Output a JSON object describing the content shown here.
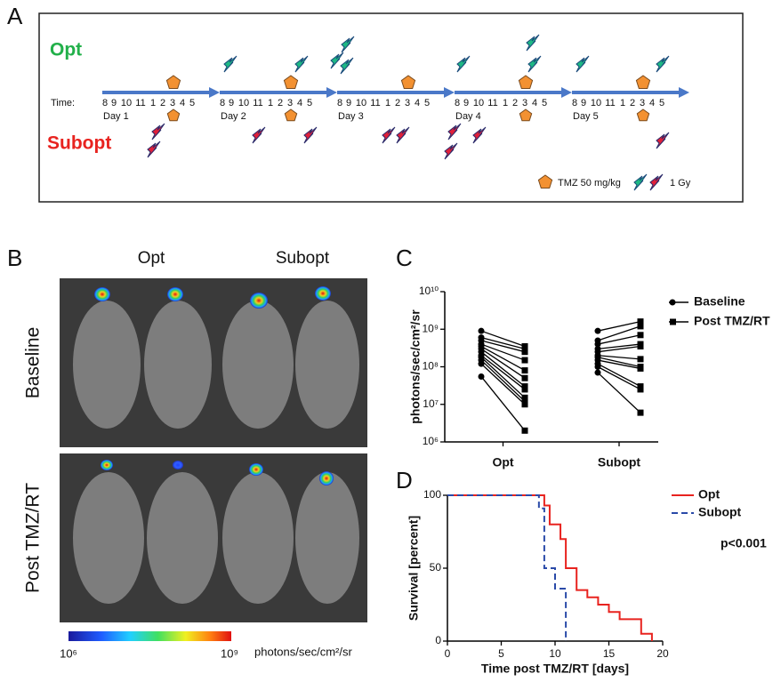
{
  "panel_a": {
    "label": "A",
    "groups": [
      "Opt",
      "Subopt"
    ],
    "time_label": "Time:",
    "hours": [
      "8",
      "9",
      "10",
      "11",
      "1",
      "2",
      "3",
      "4",
      "5"
    ],
    "days": [
      "Day 1",
      "Day 2",
      "Day 3",
      "Day 4",
      "Day 5"
    ],
    "legend": {
      "tmz": "TMZ 50 mg/kg",
      "radiation": "1 Gy"
    }
  },
  "panel_b": {
    "label": "B",
    "columns": [
      "Opt",
      "Subopt"
    ],
    "rows": [
      "Baseline",
      "Post TMZ/RT"
    ],
    "colorbar": {
      "min": "10⁶",
      "max": "10⁹",
      "unit": "photons/sec/cm²/sr"
    }
  },
  "chart_data": [
    {
      "label": "C",
      "type": "paired",
      "categories": [
        "Opt",
        "Subopt"
      ],
      "y_title": "photons/sec/cm²/sr",
      "log_scale": true,
      "ylim": [
        1000000,
        10000000000
      ],
      "yticks": [
        {
          "value": 1000000,
          "label": "10⁶"
        },
        {
          "value": 10000000,
          "label": "10⁷"
        },
        {
          "value": 100000000,
          "label": "10⁸"
        },
        {
          "value": 1000000000,
          "label": "10⁹"
        },
        {
          "value": 10000000000,
          "label": "10¹⁰"
        }
      ],
      "color": "#000000",
      "series": [
        {
          "name": "Baseline",
          "marker": "circle",
          "values": [
            [
              900000000,
              600000000,
              500000000,
              400000000,
              350000000,
              300000000,
              250000000,
              200000000,
              180000000,
              150000000,
              120000000,
              55000000
            ],
            [
              900000000,
              500000000,
              400000000,
              300000000,
              250000000,
              200000000,
              180000000,
              150000000,
              120000000,
              100000000,
              70000000
            ]
          ]
        },
        {
          "name": "Post TMZ/RT",
          "marker": "square",
          "values": [
            [
              350000000,
              300000000,
              250000000,
              150000000,
              80000000,
              50000000,
              30000000,
              25000000,
              15000000,
              12000000,
              10000000,
              2000000
            ],
            [
              1600000000,
              1200000000,
              700000000,
              400000000,
              350000000,
              160000000,
              100000000,
              90000000,
              30000000,
              25000000,
              6000000
            ]
          ]
        }
      ]
    },
    {
      "label": "D",
      "type": "step",
      "x_title": "Time post TMZ/RT [days]",
      "y_title": "Survival [percent]",
      "xlim": [
        0,
        20
      ],
      "ylim": [
        0,
        100
      ],
      "xticks": [
        0,
        5,
        10,
        15,
        20
      ],
      "yticks": [
        0,
        50,
        100
      ],
      "annotation": "p<0.001",
      "series": [
        {
          "name": "Opt",
          "color": "#e8231f",
          "dash": false,
          "x": [
            0,
            9,
            9.5,
            10.5,
            11,
            12,
            13,
            14,
            15,
            16,
            18,
            19
          ],
          "values": [
            100,
            93,
            80,
            70,
            50,
            35,
            30,
            25,
            20,
            15,
            5,
            0
          ]
        },
        {
          "name": "Subopt",
          "color": "#2a4aa8",
          "dash": true,
          "x": [
            0,
            8.5,
            9,
            10,
            11
          ],
          "values": [
            100,
            91,
            50,
            36,
            0
          ]
        }
      ]
    }
  ]
}
